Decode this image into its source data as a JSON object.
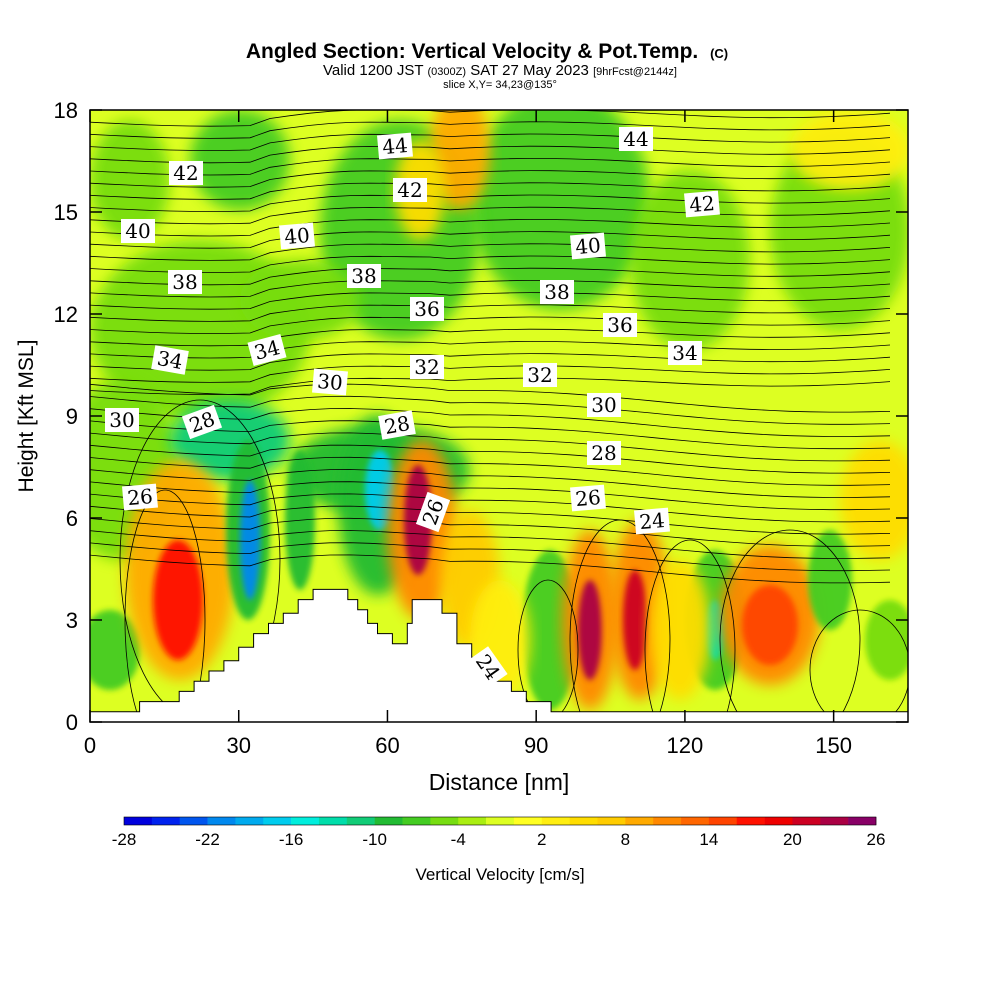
{
  "chart_data": {
    "type": "heatmap",
    "title": "Angled Section: Vertical Velocity & Pot.Temp.",
    "title_unit": "(C)",
    "subtitle": {
      "prefix": "Valid 1200 JST",
      "zulu": "(0300Z)",
      "date": "SAT 27 May 2023",
      "forecast": "[9hrFcst@2144z]"
    },
    "slice_label": "slice X,Y= 34,23@135°",
    "xlabel": "Distance [nm]",
    "ylabel": "Height [Kft MSL]",
    "xlim": [
      0,
      165
    ],
    "ylim": [
      0,
      18
    ],
    "xticks": [
      0,
      30,
      60,
      90,
      120,
      150
    ],
    "yticks": [
      0,
      3,
      6,
      9,
      12,
      15,
      18
    ],
    "grid": false,
    "colorbar": {
      "label": "Vertical Velocity [cm/s]",
      "ticks": [
        "-28",
        "-22",
        "-16",
        "-10",
        "-4",
        "2",
        "8",
        "14",
        "20",
        "26"
      ],
      "levels": [
        -28,
        -26,
        -24,
        -22,
        -20,
        -18,
        -16,
        -14,
        -12,
        -10,
        -8,
        -6,
        -4,
        -2,
        0,
        2,
        4,
        6,
        8,
        10,
        12,
        14,
        16,
        18,
        20,
        22,
        24,
        26
      ],
      "colors": [
        "#0000dd",
        "#0022ee",
        "#0055ee",
        "#0088ee",
        "#00aaee",
        "#00ccee",
        "#00eedd",
        "#00ddaa",
        "#11cc77",
        "#22bb33",
        "#44cc22",
        "#77dd11",
        "#aaee11",
        "#ddff22",
        "#ffff22",
        "#ffee11",
        "#ffdd00",
        "#ffcc00",
        "#ffaa00",
        "#ff8800",
        "#ff6600",
        "#ff4400",
        "#ff1100",
        "#ee0000",
        "#cc0022",
        "#aa0044",
        "#880066"
      ]
    },
    "contour_labels": [
      "44",
      "44",
      "42",
      "42",
      "42",
      "40",
      "40",
      "40",
      "38",
      "38",
      "38",
      "36",
      "36",
      "34",
      "34",
      "34",
      "32",
      "32",
      "30",
      "30",
      "30",
      "28",
      "28",
      "28",
      "26",
      "26",
      "26",
      "24",
      "24"
    ],
    "terrain_profile_kft": [
      [
        0,
        0.3
      ],
      [
        10,
        0.3
      ],
      [
        10,
        0.6
      ],
      [
        18,
        0.6
      ],
      [
        18,
        0.9
      ],
      [
        21,
        0.9
      ],
      [
        21,
        1.2
      ],
      [
        24,
        1.2
      ],
      [
        24,
        1.5
      ],
      [
        27,
        1.5
      ],
      [
        27,
        1.8
      ],
      [
        30,
        1.8
      ],
      [
        30,
        2.2
      ],
      [
        33,
        2.2
      ],
      [
        33,
        2.6
      ],
      [
        36,
        2.6
      ],
      [
        36,
        2.9
      ],
      [
        39,
        2.9
      ],
      [
        39,
        3.2
      ],
      [
        42,
        3.2
      ],
      [
        42,
        3.6
      ],
      [
        45,
        3.6
      ],
      [
        45,
        3.9
      ],
      [
        52,
        3.9
      ],
      [
        52,
        3.6
      ],
      [
        54,
        3.6
      ],
      [
        54,
        3.3
      ],
      [
        56,
        3.3
      ],
      [
        56,
        2.9
      ],
      [
        58,
        2.9
      ],
      [
        58,
        2.6
      ],
      [
        61,
        2.6
      ],
      [
        61,
        2.3
      ],
      [
        64,
        2.3
      ],
      [
        64,
        2.9
      ],
      [
        65,
        2.9
      ],
      [
        65,
        3.6
      ],
      [
        71,
        3.6
      ],
      [
        71,
        3.2
      ],
      [
        74,
        3.2
      ],
      [
        74,
        2.3
      ],
      [
        77,
        2.3
      ],
      [
        77,
        1.9
      ],
      [
        80,
        1.9
      ],
      [
        80,
        1.5
      ],
      [
        82,
        1.5
      ],
      [
        82,
        1.2
      ],
      [
        85,
        1.2
      ],
      [
        85,
        0.9
      ],
      [
        88,
        0.9
      ],
      [
        88,
        0.6
      ],
      [
        93,
        0.6
      ],
      [
        93,
        0.3
      ],
      [
        165,
        0.3
      ]
    ]
  }
}
